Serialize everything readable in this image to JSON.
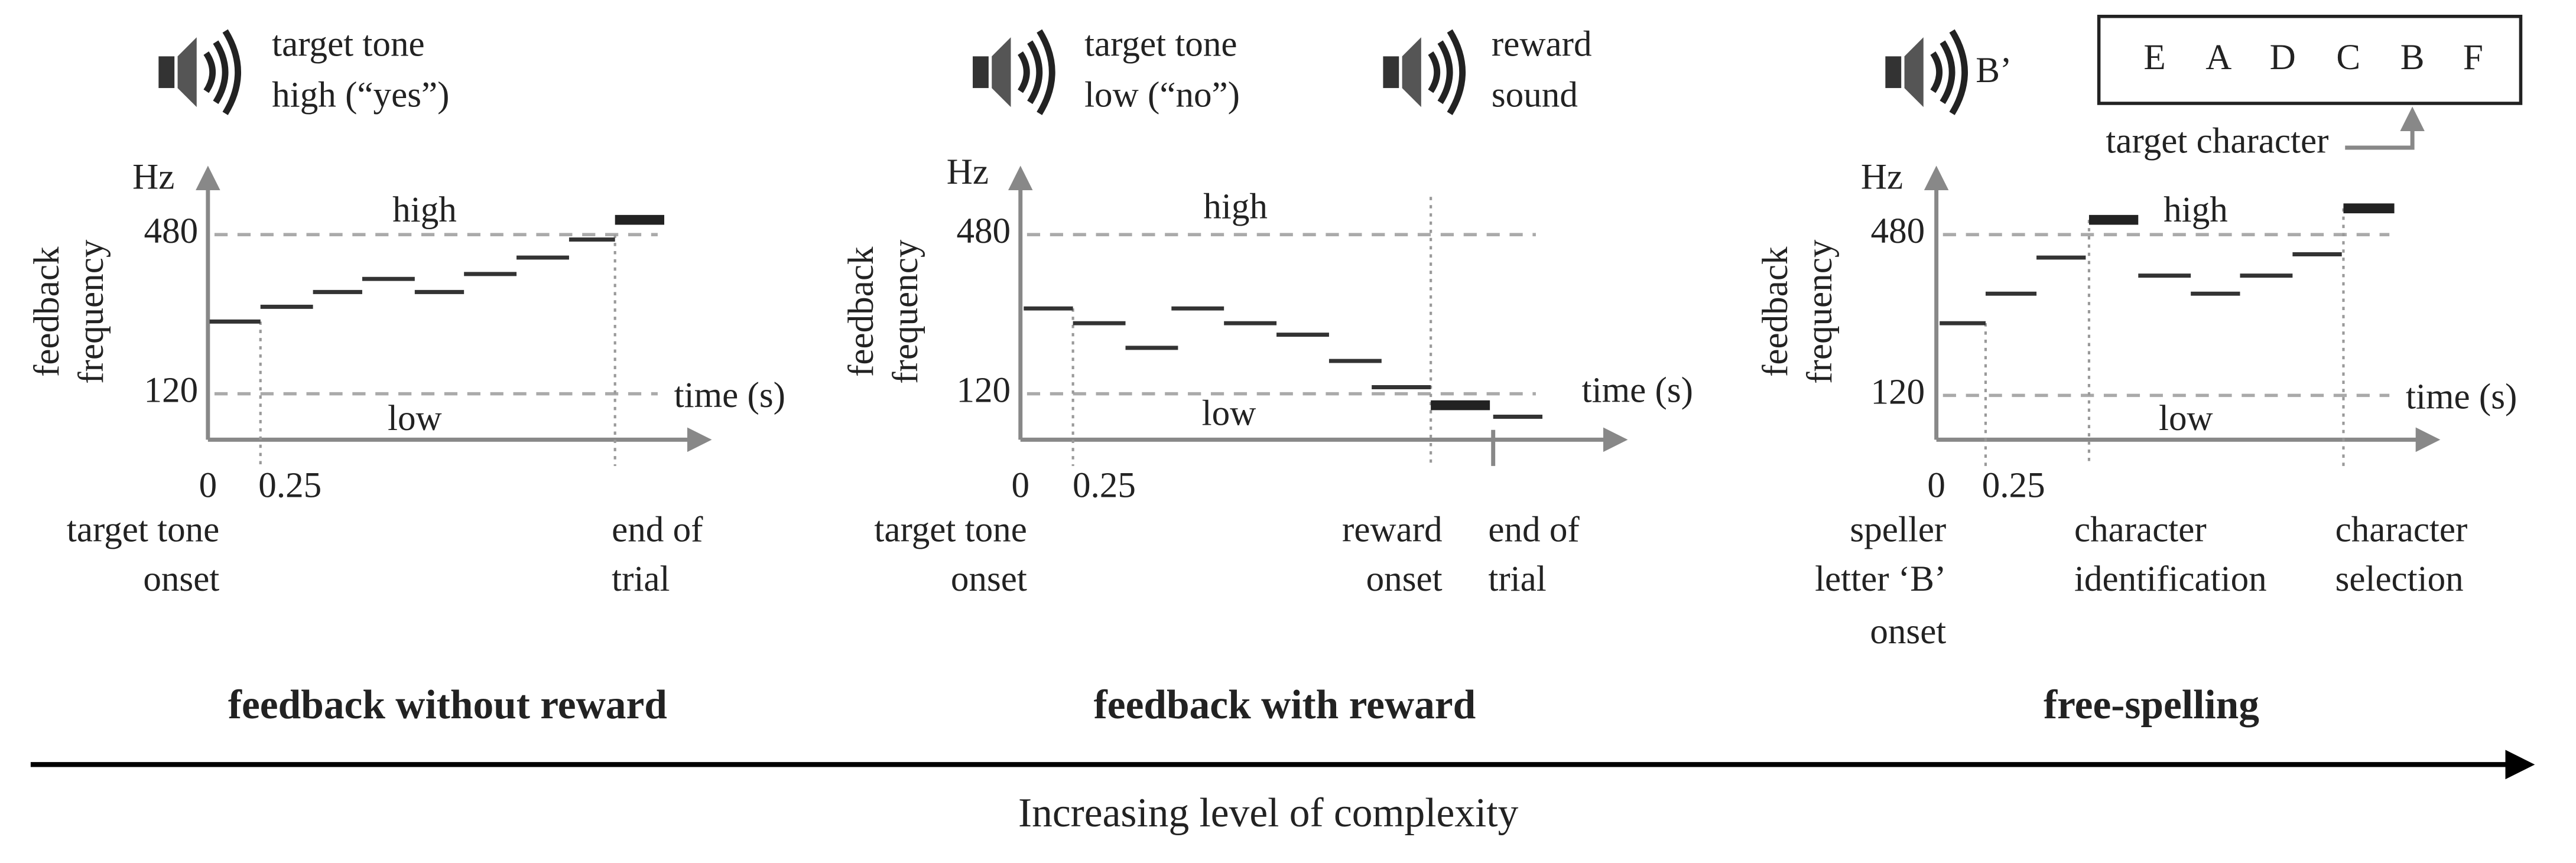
{
  "panels": [
    {
      "sounds": [
        {
          "lines": [
            "target tone",
            "high (“yes”)"
          ]
        }
      ],
      "y_unit": "Hz",
      "y_title": [
        "feedback",
        "frequency"
      ],
      "y_ticks": [
        480,
        120
      ],
      "x_ticks": [
        0,
        0.25
      ],
      "high": "high",
      "low": "low",
      "x_title": "time (s)",
      "events": [
        {
          "lines": [
            "target tone",
            "onset"
          ]
        },
        {
          "lines": [
            "end of",
            "trial"
          ]
        }
      ],
      "caption": "feedback without reward"
    },
    {
      "sounds": [
        {
          "lines": [
            "target tone",
            "low (“no”)"
          ]
        },
        {
          "lines": [
            "reward",
            "sound"
          ]
        }
      ],
      "y_unit": "Hz",
      "y_title": [
        "feedback",
        "frequency"
      ],
      "y_ticks": [
        480,
        120
      ],
      "x_ticks": [
        0,
        0.25
      ],
      "high": "high",
      "low": "low",
      "x_title": "time (s)",
      "events": [
        {
          "lines": [
            "target tone",
            "onset"
          ]
        },
        {
          "lines": [
            "reward",
            "onset"
          ]
        },
        {
          "lines": [
            "end of",
            "trial"
          ]
        }
      ],
      "caption": "feedback with reward"
    },
    {
      "sounds": [
        {
          "lines": [
            "B’"
          ]
        }
      ],
      "speller": [
        "E",
        "A",
        "D",
        "C",
        "B",
        "F"
      ],
      "target_label": "target character",
      "y_unit": "Hz",
      "y_title": [
        "feedback",
        "frequency"
      ],
      "y_ticks": [
        480,
        120
      ],
      "x_ticks": [
        0,
        0.25
      ],
      "high": "high",
      "low": "low",
      "x_title": "time (s)",
      "events": [
        {
          "lines": [
            "speller",
            "letter ‘B’",
            "onset"
          ]
        },
        {
          "lines": [
            "character",
            "identification"
          ]
        },
        {
          "lines": [
            "character",
            "selection"
          ]
        }
      ],
      "caption": "free-spelling"
    }
  ],
  "footer": "Increasing level of complexity"
}
